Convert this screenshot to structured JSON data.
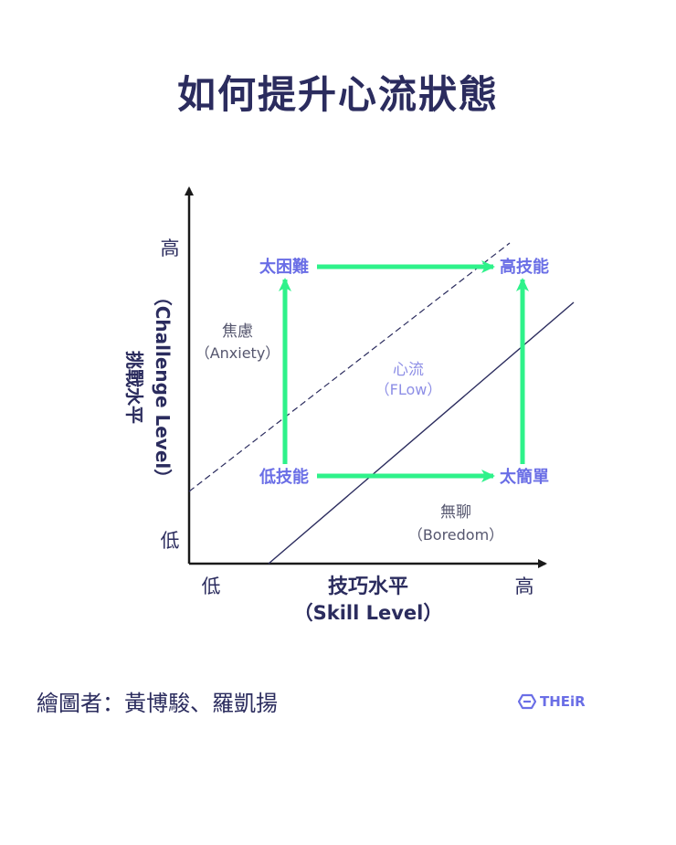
{
  "title": "如何提升心流狀態",
  "y_axis": {
    "label_zh": "挑戰水平",
    "label_en": "（Challenge Level）",
    "high": "高",
    "low": "低"
  },
  "x_axis": {
    "label_zh": "技巧水平",
    "label_en": "（Skill Level）",
    "low": "低",
    "high": "高"
  },
  "zones": {
    "anxiety_zh": "焦慮",
    "anxiety_en": "（Anxiety）",
    "flow_zh": "心流",
    "flow_en": "（FLow）",
    "boredom_zh": "無聊",
    "boredom_en": "（Boredom）"
  },
  "nodes": {
    "too_hard": "太困難",
    "high_skill": "高技能",
    "low_skill": "低技能",
    "too_easy": "太簡單"
  },
  "credit": "繪圖者：黃博駿、羅凱揚",
  "logo_text": "THEiR",
  "colors": {
    "navy": "#2b2c5e",
    "arrow_green": "#2ef28a",
    "node_purple": "#6a6ee6",
    "flow_purple": "#8e8fe6",
    "zone_gray": "#55566e"
  }
}
